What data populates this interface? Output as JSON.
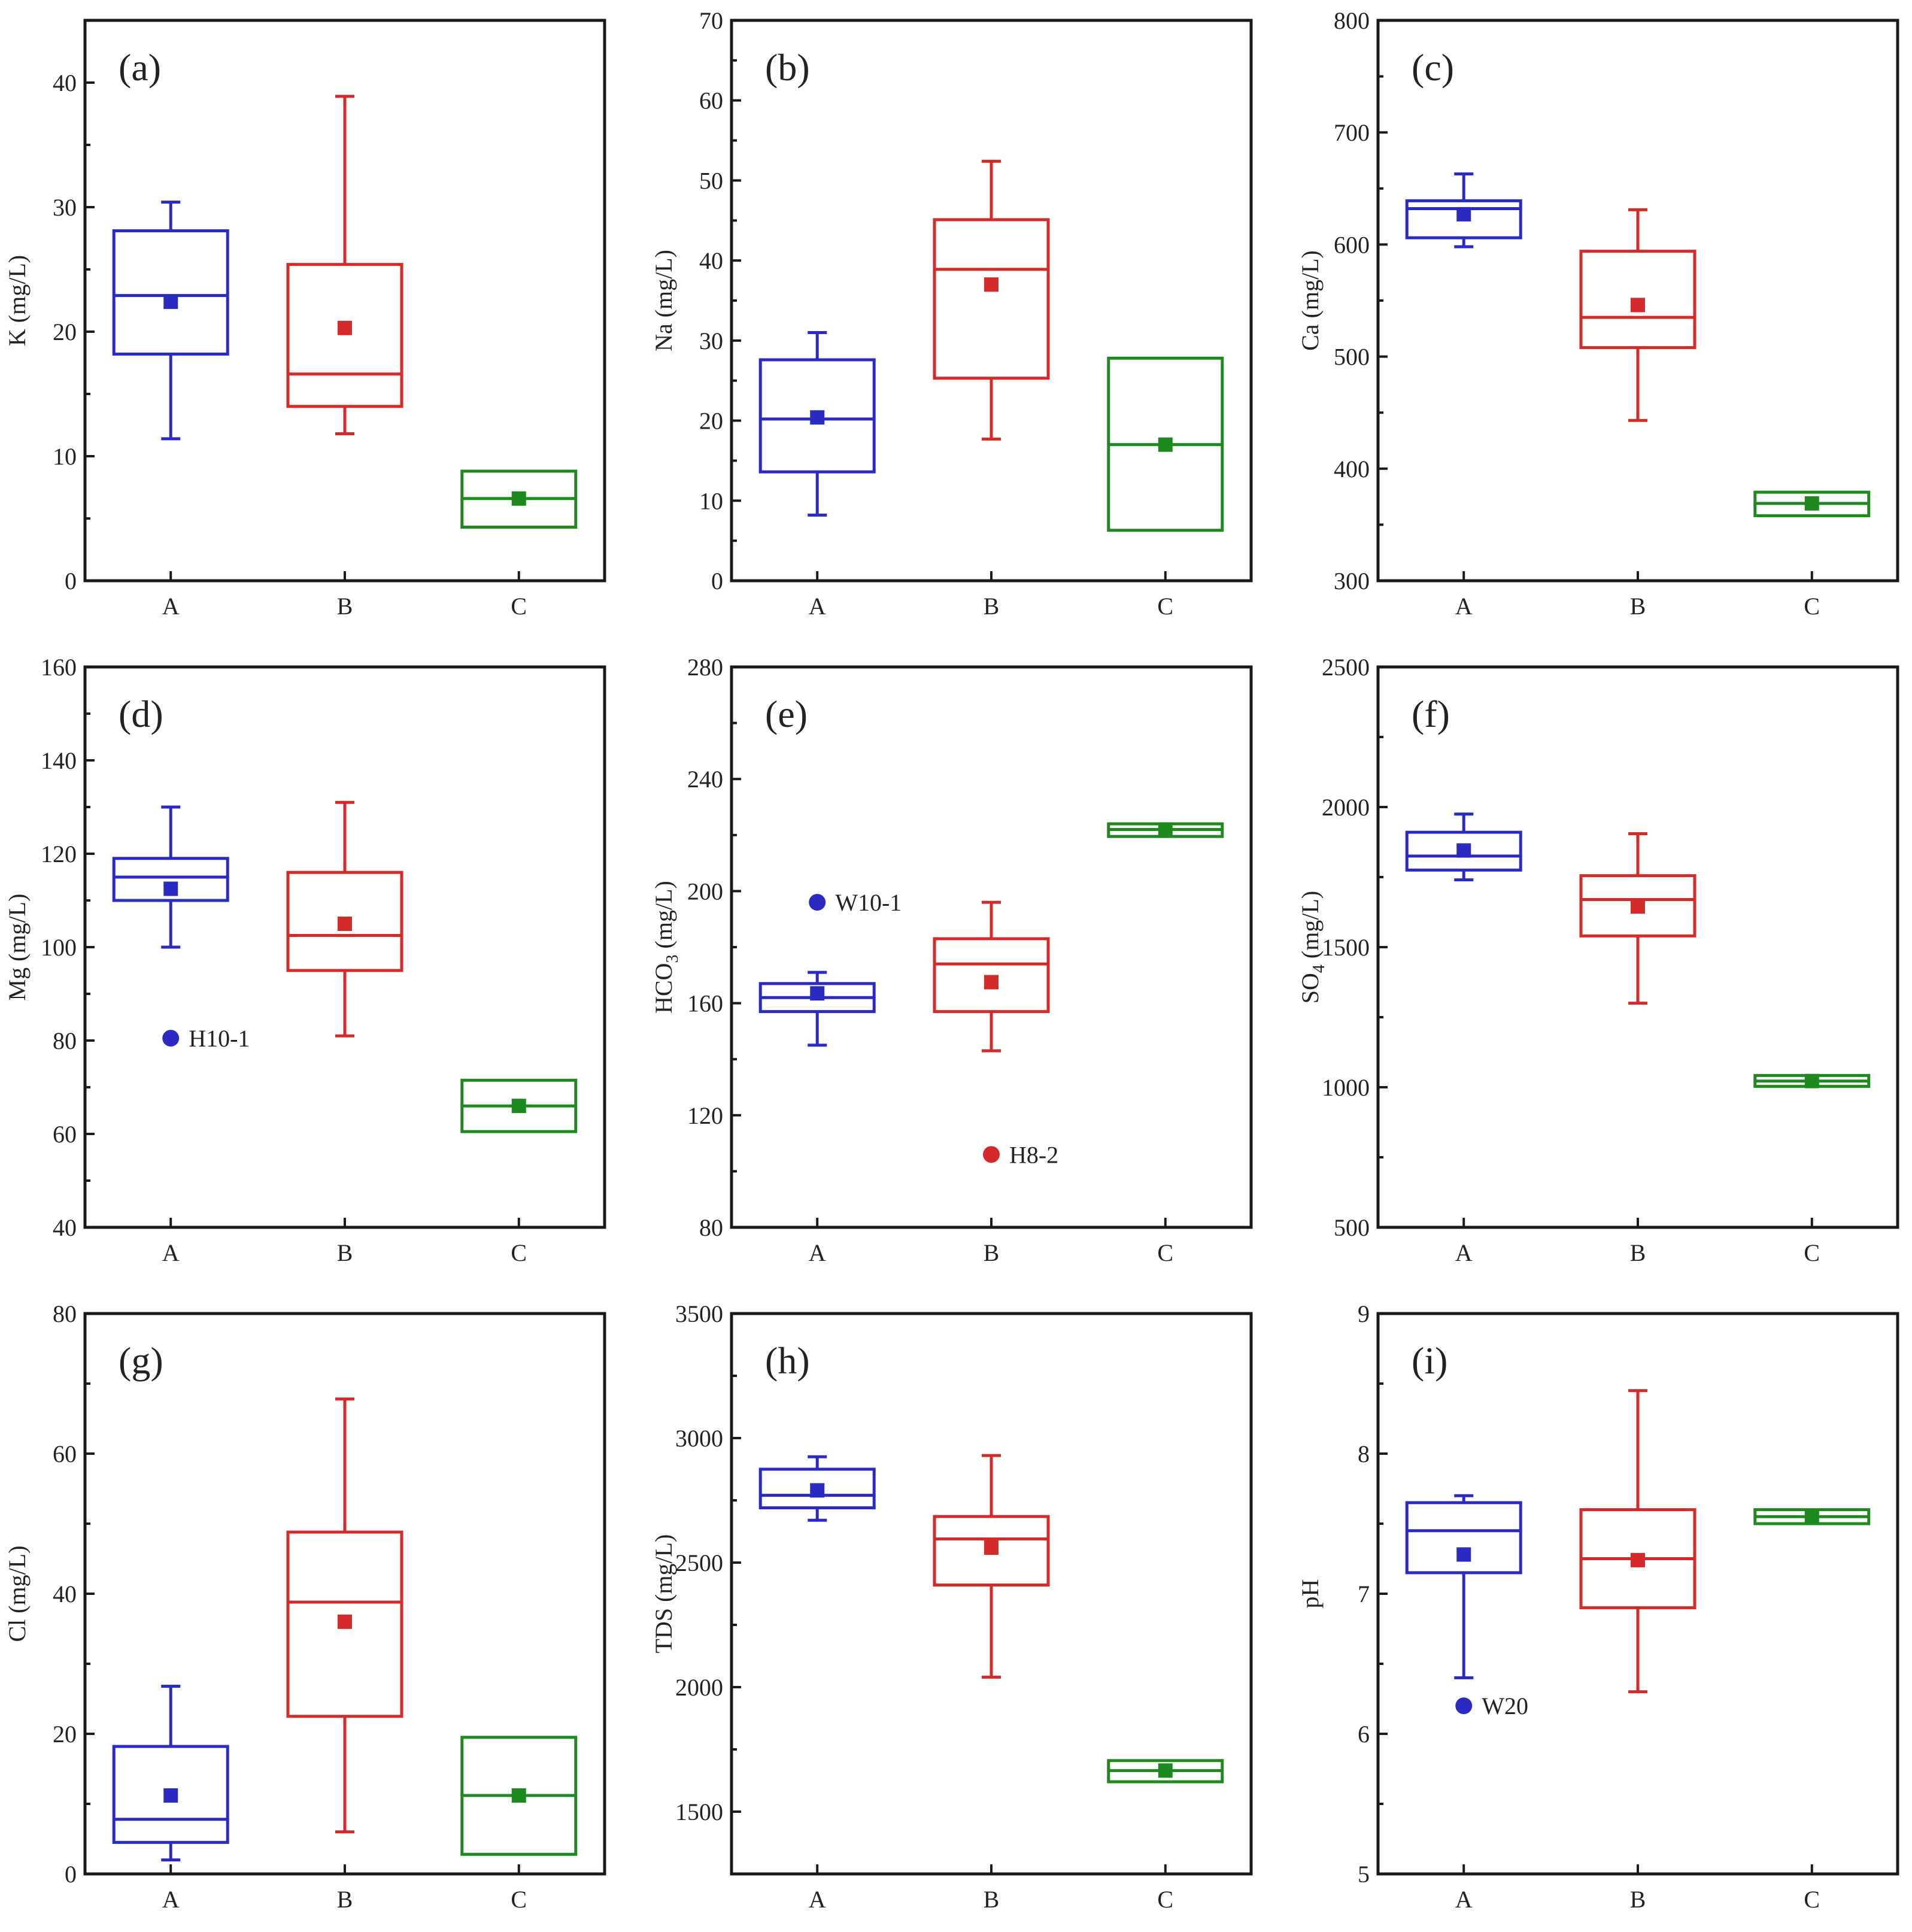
{
  "colors": {
    "A": "#2b2bc4",
    "B": "#d42a2a",
    "C": "#1e8a1e",
    "axis": "#1a1a1a"
  },
  "chart_data": [
    {
      "type": "box",
      "panel": "(a)",
      "ylabel": "K (mg/L)",
      "ylim": [
        0,
        45
      ],
      "yticks": [
        "0",
        "10",
        "20",
        "30",
        "40"
      ],
      "ytick_values": [
        0,
        10,
        20,
        30,
        40
      ],
      "categories": [
        "A",
        "B",
        "C"
      ],
      "boxes": [
        {
          "group": "A",
          "q1": 18.2,
          "median": 22.9,
          "q3": 28.1,
          "whisker_low": 11.4,
          "whisker_high": 30.4,
          "mean": 22.4,
          "whiskers": true
        },
        {
          "group": "B",
          "q1": 14.0,
          "median": 16.6,
          "q3": 25.4,
          "whisker_low": 11.8,
          "whisker_high": 38.9,
          "mean": 20.3,
          "whiskers": true
        },
        {
          "group": "C",
          "q1": 4.3,
          "median": 6.6,
          "q3": 8.8,
          "whisker_low": 4.3,
          "whisker_high": 8.8,
          "mean": 6.6,
          "whiskers": false
        }
      ],
      "outliers": []
    },
    {
      "type": "box",
      "panel": "(b)",
      "ylabel": "Na (mg/L)",
      "ylim": [
        0,
        70
      ],
      "yticks": [
        "0",
        "10",
        "20",
        "30",
        "40",
        "50",
        "60",
        "70"
      ],
      "ytick_values": [
        0,
        10,
        20,
        30,
        40,
        50,
        60,
        70
      ],
      "categories": [
        "A",
        "B",
        "C"
      ],
      "boxes": [
        {
          "group": "A",
          "q1": 13.6,
          "median": 20.2,
          "q3": 27.6,
          "whisker_low": 8.2,
          "whisker_high": 31.0,
          "mean": 20.4,
          "whiskers": true
        },
        {
          "group": "B",
          "q1": 25.3,
          "median": 38.9,
          "q3": 45.1,
          "whisker_low": 17.7,
          "whisker_high": 52.4,
          "mean": 37.0,
          "whiskers": true
        },
        {
          "group": "C",
          "q1": 6.3,
          "median": 17.0,
          "q3": 27.8,
          "whisker_low": 6.3,
          "whisker_high": 27.8,
          "mean": 17.0,
          "whiskers": false
        }
      ],
      "outliers": []
    },
    {
      "type": "box",
      "panel": "(c)",
      "ylabel": "Ca (mg/L)",
      "ylim": [
        300,
        800
      ],
      "yticks": [
        "300",
        "400",
        "500",
        "600",
        "700",
        "800"
      ],
      "ytick_values": [
        300,
        400,
        500,
        600,
        700,
        800
      ],
      "categories": [
        "A",
        "B",
        "C"
      ],
      "boxes": [
        {
          "group": "A",
          "q1": 606,
          "median": 632,
          "q3": 639,
          "whisker_low": 598,
          "whisker_high": 663,
          "mean": 627,
          "whiskers": true
        },
        {
          "group": "B",
          "q1": 508,
          "median": 535,
          "q3": 594,
          "whisker_low": 443,
          "whisker_high": 631,
          "mean": 546,
          "whiskers": true
        },
        {
          "group": "C",
          "q1": 358,
          "median": 369,
          "q3": 379,
          "whisker_low": 358,
          "whisker_high": 379,
          "mean": 369,
          "whiskers": false
        }
      ],
      "outliers": []
    },
    {
      "type": "box",
      "panel": "(d)",
      "ylabel": "Mg (mg/L)",
      "ylim": [
        40,
        160
      ],
      "yticks": [
        "40",
        "60",
        "80",
        "100",
        "120",
        "140",
        "160"
      ],
      "ytick_values": [
        40,
        60,
        80,
        100,
        120,
        140,
        160
      ],
      "categories": [
        "A",
        "B",
        "C"
      ],
      "boxes": [
        {
          "group": "A",
          "q1": 110,
          "median": 115,
          "q3": 119,
          "whisker_low": 100,
          "whisker_high": 130,
          "mean": 112.5,
          "whiskers": true
        },
        {
          "group": "B",
          "q1": 95,
          "median": 102.5,
          "q3": 116,
          "whisker_low": 81,
          "whisker_high": 131,
          "mean": 105,
          "whiskers": true
        },
        {
          "group": "C",
          "q1": 60.5,
          "median": 66,
          "q3": 71.5,
          "whisker_low": 60.5,
          "whisker_high": 71.5,
          "mean": 66,
          "whiskers": false
        }
      ],
      "outliers": [
        {
          "group": "A",
          "value": 80.5,
          "label": "H10-1"
        }
      ]
    },
    {
      "type": "box",
      "panel": "(e)",
      "ylabel_main": "HCO",
      "ylabel_sub": "3",
      "ylabel_unit": " (mg/L)",
      "ylim": [
        80,
        280
      ],
      "yticks": [
        "80",
        "120",
        "160",
        "200",
        "240",
        "280"
      ],
      "ytick_values": [
        80,
        120,
        160,
        200,
        240,
        280
      ],
      "categories": [
        "A",
        "B",
        "C"
      ],
      "boxes": [
        {
          "group": "A",
          "q1": 157,
          "median": 162,
          "q3": 167,
          "whisker_low": 145,
          "whisker_high": 171,
          "mean": 163.5,
          "whiskers": true
        },
        {
          "group": "B",
          "q1": 157,
          "median": 174,
          "q3": 183,
          "whisker_low": 143,
          "whisker_high": 196,
          "mean": 167.5,
          "whiskers": true
        },
        {
          "group": "C",
          "q1": 219.5,
          "median": 222,
          "q3": 224,
          "whisker_low": 219.5,
          "whisker_high": 224,
          "mean": 222,
          "whiskers": false
        }
      ],
      "outliers": [
        {
          "group": "A",
          "value": 196,
          "label": "W10-1"
        },
        {
          "group": "B",
          "value": 106,
          "label": "H8-2"
        }
      ]
    },
    {
      "type": "box",
      "panel": "(f)",
      "ylabel_main": "SO",
      "ylabel_sub": "4",
      "ylabel_unit": " (mg/L)",
      "ylim": [
        500,
        2500
      ],
      "yticks": [
        "500",
        "1000",
        "1500",
        "2000",
        "2500"
      ],
      "ytick_values": [
        500,
        1000,
        1500,
        2000,
        2500
      ],
      "categories": [
        "A",
        "B",
        "C"
      ],
      "boxes": [
        {
          "group": "A",
          "q1": 1775,
          "median": 1825,
          "q3": 1910,
          "whisker_low": 1740,
          "whisker_high": 1975,
          "mean": 1845,
          "whiskers": true
        },
        {
          "group": "B",
          "q1": 1540,
          "median": 1670,
          "q3": 1755,
          "whisker_low": 1300,
          "whisker_high": 1905,
          "mean": 1645,
          "whiskers": true
        },
        {
          "group": "C",
          "q1": 1003,
          "median": 1022,
          "q3": 1042,
          "whisker_low": 1003,
          "whisker_high": 1042,
          "mean": 1022,
          "whiskers": false
        }
      ],
      "outliers": []
    },
    {
      "type": "box",
      "panel": "(g)",
      "ylabel": "Cl (mg/L)",
      "ylim": [
        0,
        80
      ],
      "yticks": [
        "0",
        "20",
        "40",
        "60",
        "80"
      ],
      "ytick_values": [
        0,
        20,
        40,
        60,
        80
      ],
      "categories": [
        "A",
        "B",
        "C"
      ],
      "boxes": [
        {
          "group": "A",
          "q1": 4.5,
          "median": 7.8,
          "q3": 18.2,
          "whisker_low": 2.0,
          "whisker_high": 26.8,
          "mean": 11.2,
          "whiskers": true
        },
        {
          "group": "B",
          "q1": 22.5,
          "median": 38.8,
          "q3": 48.8,
          "whisker_low": 6.0,
          "whisker_high": 67.8,
          "mean": 36.0,
          "whiskers": true
        },
        {
          "group": "C",
          "q1": 2.8,
          "median": 11.2,
          "q3": 19.5,
          "whisker_low": 2.8,
          "whisker_high": 19.5,
          "mean": 11.2,
          "whiskers": false
        }
      ],
      "outliers": []
    },
    {
      "type": "box",
      "panel": "(h)",
      "ylabel": "TDS (mg/L)",
      "ylim": [
        1250,
        3500
      ],
      "yticks": [
        "1500",
        "2000",
        "2500",
        "3000",
        "3500"
      ],
      "ytick_values": [
        1500,
        2000,
        2500,
        3000,
        3500
      ],
      "categories": [
        "A",
        "B",
        "C"
      ],
      "boxes": [
        {
          "group": "A",
          "q1": 2720,
          "median": 2770,
          "q3": 2875,
          "whisker_low": 2670,
          "whisker_high": 2925,
          "mean": 2790,
          "whiskers": true
        },
        {
          "group": "B",
          "q1": 2410,
          "median": 2595,
          "q3": 2685,
          "whisker_low": 2040,
          "whisker_high": 2930,
          "mean": 2560,
          "whiskers": true
        },
        {
          "group": "C",
          "q1": 1620,
          "median": 1665,
          "q3": 1705,
          "whisker_low": 1620,
          "whisker_high": 1705,
          "mean": 1665,
          "whiskers": false
        }
      ],
      "outliers": []
    },
    {
      "type": "box",
      "panel": "(i)",
      "ylabel": "pH",
      "ylim": [
        5,
        9
      ],
      "yticks": [
        "5",
        "6",
        "7",
        "8",
        "9"
      ],
      "ytick_values": [
        5,
        6,
        7,
        8,
        9
      ],
      "categories": [
        "A",
        "B",
        "C"
      ],
      "boxes": [
        {
          "group": "A",
          "q1": 7.15,
          "median": 7.45,
          "q3": 7.65,
          "whisker_low": 6.4,
          "whisker_high": 7.7,
          "mean": 7.28,
          "whiskers": true
        },
        {
          "group": "B",
          "q1": 6.9,
          "median": 7.25,
          "q3": 7.6,
          "whisker_low": 6.3,
          "whisker_high": 8.45,
          "mean": 7.24,
          "whiskers": true
        },
        {
          "group": "C",
          "q1": 7.5,
          "median": 7.55,
          "q3": 7.6,
          "whisker_low": 7.5,
          "whisker_high": 7.6,
          "mean": 7.55,
          "whiskers": false
        }
      ],
      "outliers": [
        {
          "group": "A",
          "value": 6.2,
          "label": "W20"
        }
      ]
    }
  ]
}
